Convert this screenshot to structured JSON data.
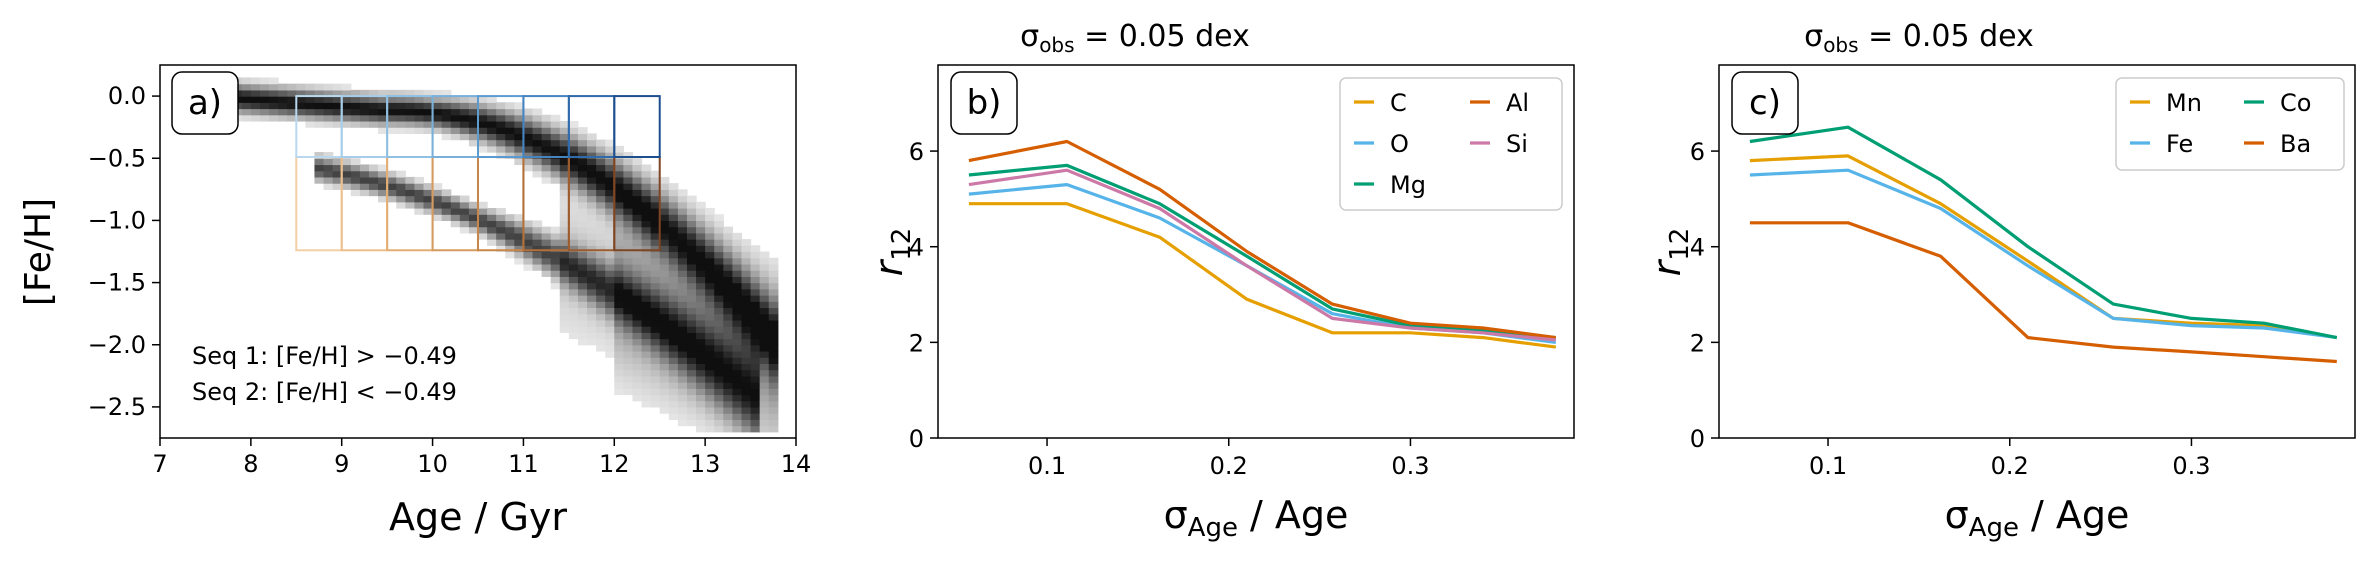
{
  "chart_data": [
    {
      "panel": "a)",
      "type": "heatmap",
      "xlabel": "Age / Gyr",
      "ylabel": "[Fe/H]",
      "xlim": [
        7,
        14
      ],
      "ylim": [
        -2.75,
        0.25
      ],
      "xticks": [
        "7",
        "8",
        "9",
        "10",
        "11",
        "12",
        "13",
        "14"
      ],
      "yticks": [
        "0.0",
        "−0.5",
        "−1.0",
        "−1.5",
        "−2.0",
        "−2.5"
      ],
      "seq1_label": "Seq 1: [Fe/H] > −0.49",
      "seq2_label": "Seq 2: [Fe/H] < −0.49",
      "seq1_color": "#3a8fc0",
      "seq2_color": "#c9913d",
      "seq1_grid": {
        "x_edges": [
          8.5,
          9,
          9.5,
          10,
          10.5,
          11,
          11.5,
          12,
          12.5
        ],
        "y_range": [
          -0.49,
          0.0
        ],
        "colors": [
          "#b9d8ee",
          "#a6cde9",
          "#8fc0e3",
          "#78b0db",
          "#5c9bd0",
          "#4584c0",
          "#2f6aaa",
          "#1d4f8f"
        ]
      },
      "seq2_grid": {
        "x_edges": [
          8.5,
          9,
          9.5,
          10,
          10.5,
          11,
          11.5,
          12,
          12.5
        ],
        "y_range": [
          -1.24,
          -0.49
        ],
        "colors": [
          "#f3cfa3",
          "#edbf8c",
          "#e3ad74",
          "#d79a5e",
          "#c8854a",
          "#b3703a",
          "#9a5b2d",
          "#7e4522"
        ]
      }
    },
    {
      "panel": "b)",
      "type": "line",
      "title": "σobs = 0.05 dex",
      "xlabel": "σAge / Age",
      "ylabel": "r12",
      "xlim": [
        0.04,
        0.39
      ],
      "ylim": [
        0,
        7.8
      ],
      "xticks": [
        "0.1",
        "0.2",
        "0.3"
      ],
      "yticks": [
        "0",
        "2",
        "4",
        "6"
      ],
      "x": [
        0.057,
        0.111,
        0.162,
        0.21,
        0.257,
        0.3,
        0.34,
        0.38
      ],
      "series": [
        {
          "name": "C",
          "color": "#e69f00",
          "values": [
            4.9,
            4.9,
            4.2,
            2.9,
            2.2,
            2.2,
            2.1,
            1.9
          ]
        },
        {
          "name": "O",
          "color": "#56b4e9",
          "values": [
            5.1,
            5.3,
            4.6,
            3.6,
            2.6,
            2.3,
            2.2,
            2.0
          ]
        },
        {
          "name": "Mg",
          "color": "#009e73",
          "values": [
            5.5,
            5.7,
            4.9,
            3.8,
            2.7,
            2.35,
            2.25,
            2.1
          ]
        },
        {
          "name": "Al",
          "color": "#d55e00",
          "values": [
            5.8,
            6.2,
            5.2,
            3.9,
            2.8,
            2.4,
            2.3,
            2.1
          ]
        },
        {
          "name": "Si",
          "color": "#cc79a7",
          "values": [
            5.3,
            5.6,
            4.8,
            3.6,
            2.5,
            2.3,
            2.2,
            2.05
          ]
        }
      ]
    },
    {
      "panel": "c)",
      "type": "line",
      "title": "σobs = 0.05 dex",
      "xlabel": "σAge / Age",
      "ylabel": "r12",
      "xlim": [
        0.04,
        0.39
      ],
      "ylim": [
        0,
        7.8
      ],
      "xticks": [
        "0.1",
        "0.2",
        "0.3"
      ],
      "yticks": [
        "0",
        "2",
        "4",
        "6"
      ],
      "x": [
        0.057,
        0.111,
        0.162,
        0.21,
        0.257,
        0.3,
        0.34,
        0.38
      ],
      "series": [
        {
          "name": "Mn",
          "color": "#e69f00",
          "values": [
            5.8,
            5.9,
            4.9,
            3.7,
            2.5,
            2.4,
            2.35,
            2.1
          ]
        },
        {
          "name": "Fe",
          "color": "#56b4e9",
          "values": [
            5.5,
            5.6,
            4.8,
            3.6,
            2.5,
            2.35,
            2.3,
            2.1
          ]
        },
        {
          "name": "Co",
          "color": "#009e73",
          "values": [
            6.2,
            6.5,
            5.4,
            4.0,
            2.8,
            2.5,
            2.4,
            2.1
          ]
        },
        {
          "name": "Ba",
          "color": "#d55e00",
          "values": [
            4.5,
            4.5,
            3.8,
            2.1,
            1.9,
            1.8,
            1.7,
            1.6
          ]
        }
      ]
    }
  ]
}
